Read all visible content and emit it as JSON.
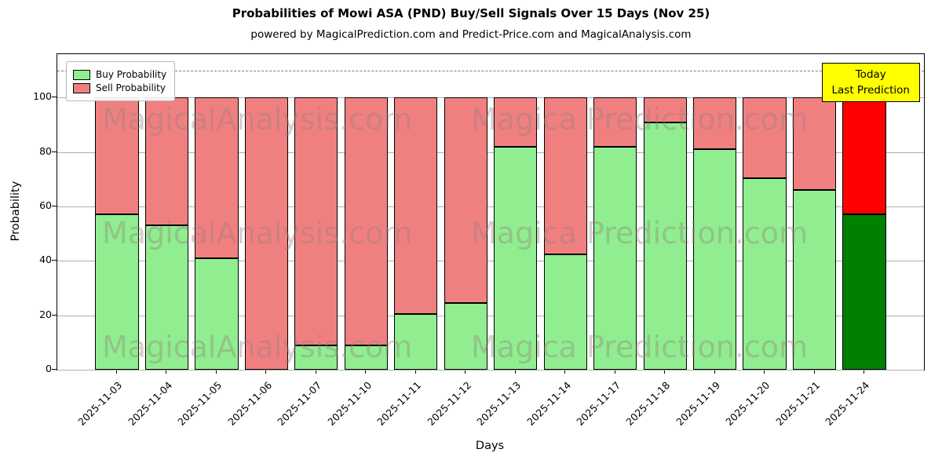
{
  "title": "Probabilities of Mowi ASA (PND) Buy/Sell Signals Over 15 Days (Nov 25)",
  "subtitle": "powered by MagicalPrediction.com and Predict-Price.com and MagicalAnalysis.com",
  "axes": {
    "xlabel": "Days",
    "ylabel": "Probability"
  },
  "legend": [
    {
      "label": "Buy Probability",
      "color": "#90EE90"
    },
    {
      "label": "Sell Probability",
      "color": "#F08080"
    }
  ],
  "annotation": {
    "line1": "Today",
    "line2": "Last Prediction",
    "bg": "#FFFF00"
  },
  "watermarks": {
    "left": "MagicalAnalysis.com",
    "right": "Magica Prediction.com"
  },
  "colors": {
    "buy": "#90EE90",
    "sell": "#F08080",
    "today_buy": "#008000",
    "today_sell": "#FF0000",
    "grid": "#b0b0b0",
    "dashed": "#7f7f7f",
    "annotation_bg": "#FFFF00"
  },
  "chart_data": {
    "type": "bar",
    "stacked": true,
    "title": "Probabilities of Mowi ASA (PND) Buy/Sell Signals Over 15 Days (Nov 25)",
    "xlabel": "Days",
    "ylabel": "Probability",
    "categories": [
      "2025-11-03",
      "2025-11-04",
      "2025-11-05",
      "2025-11-06",
      "2025-11-07",
      "2025-11-10",
      "2025-11-11",
      "2025-11-12",
      "2025-11-13",
      "2025-11-14",
      "2025-11-17",
      "2025-11-18",
      "2025-11-19",
      "2025-11-20",
      "2025-11-21",
      "2025-11-24"
    ],
    "series": [
      {
        "name": "Buy Probability",
        "values": [
          57,
          53,
          41,
          0,
          9,
          9,
          20.5,
          24.5,
          82,
          42.5,
          82,
          91,
          81,
          70.5,
          66,
          57
        ]
      },
      {
        "name": "Sell Probability",
        "values": [
          43,
          47,
          59,
          100,
          91,
          91,
          79.5,
          75.5,
          18,
          57.5,
          18,
          9,
          19,
          29.5,
          34,
          43
        ]
      }
    ],
    "ylim": [
      0,
      116
    ],
    "yticks": [
      0,
      20,
      40,
      60,
      80,
      100
    ],
    "dashed_line_y": 110,
    "grid": true,
    "legend_position": "upper left",
    "highlight_last_bar": true
  }
}
